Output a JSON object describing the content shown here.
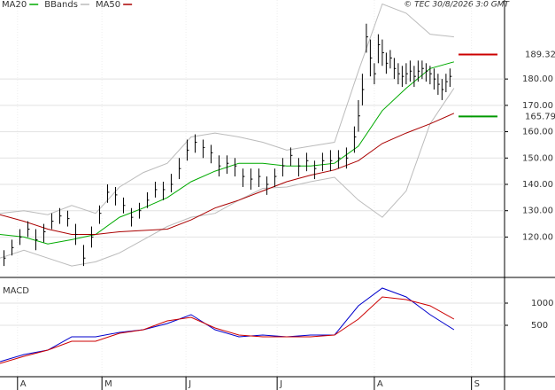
{
  "chart_data": {
    "type": "stock",
    "date": "© TEC 30/8/2026 3:0 GMT",
    "xlim": [
      0,
      126.7
    ],
    "xticks": [
      {
        "value": 4.4,
        "label": "A"
      },
      {
        "value": 25.6,
        "label": "M"
      },
      {
        "value": 46.7,
        "label": "J"
      },
      {
        "value": 69.6,
        "label": "J"
      },
      {
        "value": 94,
        "label": "A"
      },
      {
        "value": 118.4,
        "label": "S"
      }
    ],
    "ylim": [
      105,
      210
    ],
    "yticks": [
      {
        "value": 120,
        "label": "120.00"
      },
      {
        "value": 130,
        "label": "130.00"
      },
      {
        "value": 140,
        "label": "140.00"
      },
      {
        "value": 150,
        "label": "150.00"
      },
      {
        "value": 160,
        "label": "160.00"
      },
      {
        "value": 170,
        "label": "170.00"
      },
      {
        "value": 180,
        "label": "180.00"
      }
    ],
    "grid": true,
    "price": {
      "color": "#000000",
      "x": [
        1,
        3,
        5,
        7,
        9,
        11,
        13,
        15,
        17,
        19,
        21,
        23,
        25,
        27,
        29,
        31,
        33,
        35,
        37,
        39,
        41,
        43,
        45,
        47,
        49,
        51,
        53,
        55,
        57,
        59,
        61,
        63,
        65,
        67,
        69,
        71,
        73,
        75,
        77,
        79,
        81,
        83,
        85,
        87,
        89,
        90,
        91,
        92,
        93,
        94,
        95,
        96,
        97,
        98,
        99,
        100,
        101,
        102,
        103,
        104,
        105,
        106,
        107,
        108,
        109,
        110,
        111,
        112,
        113
      ],
      "high": [
        115,
        119,
        123,
        126,
        123,
        125,
        129,
        131,
        130,
        125,
        117,
        124,
        132,
        140,
        139,
        135,
        131,
        133,
        137,
        141,
        141,
        144,
        150,
        157,
        159,
        157,
        155,
        151,
        151,
        150,
        146,
        146,
        146,
        143,
        146,
        150,
        154,
        150,
        152,
        149,
        152,
        153,
        153,
        154,
        162,
        172,
        182,
        201,
        195,
        186,
        197,
        195,
        190,
        191,
        188,
        186,
        185,
        186,
        187,
        185,
        187,
        187,
        186,
        185,
        184,
        182,
        180,
        182,
        184
      ],
      "low": [
        109,
        113,
        117,
        120,
        115,
        118,
        123,
        125,
        124,
        117,
        109,
        116,
        125,
        133,
        132,
        129,
        124,
        127,
        131,
        135,
        134,
        137,
        142,
        149,
        152,
        150,
        148,
        143,
        144,
        143,
        139,
        138,
        139,
        136,
        139,
        143,
        147,
        143,
        145,
        142,
        145,
        145,
        146,
        146,
        152,
        160,
        170,
        190,
        181,
        178,
        186,
        185,
        182,
        184,
        180,
        178,
        177,
        178,
        179,
        177,
        179,
        180,
        179,
        178,
        176,
        174,
        172,
        175,
        177
      ],
      "close": [
        112,
        116,
        120,
        123,
        119,
        122,
        126,
        128,
        127,
        121,
        112,
        120,
        129,
        137,
        136,
        132,
        127.5,
        130,
        134,
        138,
        138,
        140,
        146,
        153,
        156,
        154,
        152,
        147,
        148,
        147,
        143,
        142,
        143,
        140,
        143,
        147,
        151,
        147,
        149,
        146,
        149,
        149,
        150,
        150,
        158,
        166,
        176,
        196,
        188,
        182,
        193,
        190,
        186,
        188,
        184,
        182,
        181,
        182,
        183,
        181,
        183,
        184,
        183,
        182,
        180,
        178,
        176,
        179,
        181
      ]
    },
    "line_x": [
      0,
      6,
      12,
      18,
      24,
      30,
      36,
      42,
      48,
      54,
      60,
      66,
      72,
      78,
      84,
      90,
      96,
      102,
      108,
      114
    ],
    "series": [
      {
        "name": "MA20",
        "color": "#00aa00",
        "values": [
          121,
          120,
          117.4,
          119,
          121,
          127.5,
          131,
          135,
          141,
          145,
          148,
          148,
          147,
          147,
          148,
          154.5,
          168,
          176.5,
          184,
          186.5
        ]
      },
      {
        "name": "BBands",
        "color": "#bbbbbb",
        "upper": [
          129,
          130,
          128.5,
          132,
          129,
          139,
          144.5,
          148,
          158,
          159.5,
          158,
          156,
          153,
          154.5,
          156,
          183,
          208.5,
          205,
          197,
          196
        ],
        "lower": [
          112,
          115,
          112,
          109,
          110.6,
          114,
          119,
          124,
          127.5,
          129,
          134,
          138.5,
          139,
          141,
          142.7,
          134,
          127.5,
          137.5,
          163,
          176.5
        ]
      },
      {
        "name": "MA50",
        "color": "#aa0000",
        "values": [
          128.5,
          126,
          123,
          121,
          121,
          122,
          122.5,
          123,
          126.5,
          131,
          134,
          137.5,
          141,
          143.5,
          145.5,
          149,
          155.5,
          159.5,
          163,
          167
        ]
      }
    ],
    "markers": [
      {
        "value": 189.32,
        "label": "189.32",
        "color": "#cc0000"
      },
      {
        "value": 165.79,
        "label": "165.79",
        "color": "#009900"
      }
    ],
    "macd": {
      "title": "MACD",
      "ylim": [
        -660,
        1540
      ],
      "yticks": [
        500,
        1000
      ],
      "lines": [
        {
          "color": "#0000cc",
          "values": [
            -320,
            -160,
            -60,
            240,
            240,
            340,
            400,
            540,
            740,
            400,
            240,
            280,
            240,
            280,
            280,
            940,
            1340,
            1140,
            740,
            400
          ]
        },
        {
          "color": "#cc0000",
          "values": [
            -360,
            -200,
            -60,
            140,
            140,
            320,
            400,
            600,
            680,
            440,
            280,
            240,
            240,
            240,
            280,
            640,
            1140,
            1080,
            940,
            640
          ]
        }
      ]
    }
  }
}
